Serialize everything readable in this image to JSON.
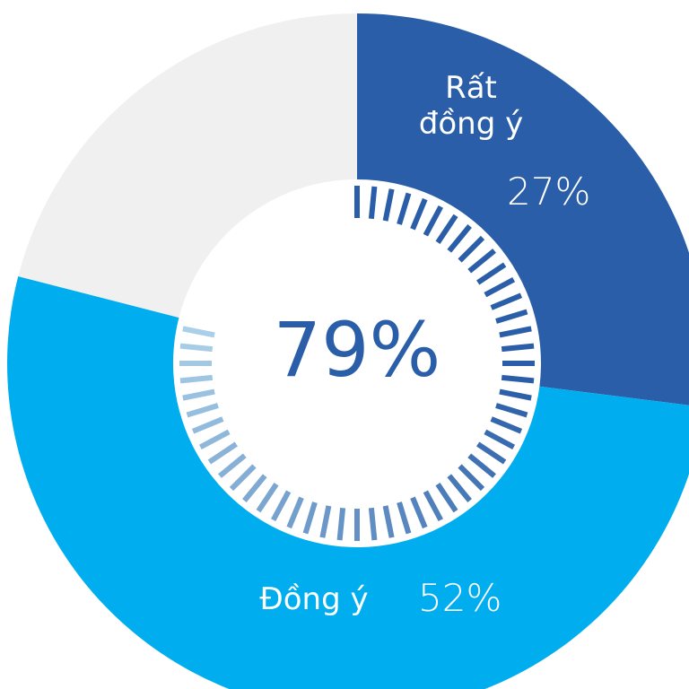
{
  "chart_data": {
    "type": "donut",
    "categories": [
      "Rất đồng ý",
      "Đồng ý",
      null
    ],
    "values": [
      27,
      52,
      21
    ],
    "value_labels": [
      "27%",
      "52%",
      null
    ],
    "colors": [
      "#2a5ea8",
      "#00aeef",
      "#f0f0f0"
    ],
    "center": {
      "value": 79,
      "label": "79%"
    }
  }
}
